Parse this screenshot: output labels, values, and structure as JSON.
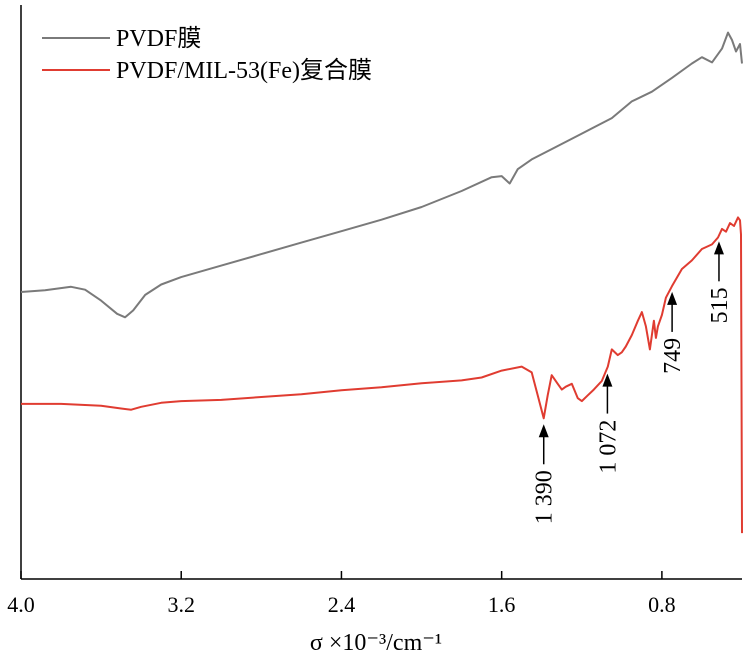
{
  "chart_data": {
    "type": "line",
    "xlabel": "σ ×10⁻³/cm⁻¹",
    "xlim": [
      4.0,
      0.4
    ],
    "x_reversed": true,
    "x_ticks": [
      4.0,
      3.2,
      2.4,
      1.6,
      0.8
    ],
    "x_tick_labels": [
      "4.0",
      "3.2",
      "2.4",
      "1.6",
      "0.8"
    ],
    "ylim": [
      0,
      100
    ],
    "y_ticks_shown": false,
    "legend_position": "top-left",
    "series": [
      {
        "name": "PVDF膜",
        "color": "#7a7a7a",
        "points": [
          [
            4.0,
            50.0
          ],
          [
            3.88,
            50.3
          ],
          [
            3.75,
            50.9
          ],
          [
            3.68,
            50.4
          ],
          [
            3.6,
            48.5
          ],
          [
            3.52,
            46.2
          ],
          [
            3.48,
            45.6
          ],
          [
            3.44,
            46.8
          ],
          [
            3.38,
            49.5
          ],
          [
            3.3,
            51.3
          ],
          [
            3.2,
            52.6
          ],
          [
            3.0,
            54.6
          ],
          [
            2.8,
            56.6
          ],
          [
            2.6,
            58.6
          ],
          [
            2.4,
            60.6
          ],
          [
            2.2,
            62.6
          ],
          [
            2.0,
            64.8
          ],
          [
            1.8,
            67.6
          ],
          [
            1.65,
            70.0
          ],
          [
            1.6,
            70.2
          ],
          [
            1.56,
            68.9
          ],
          [
            1.52,
            71.4
          ],
          [
            1.45,
            73.1
          ],
          [
            1.35,
            74.9
          ],
          [
            1.2,
            77.6
          ],
          [
            1.05,
            80.3
          ],
          [
            0.95,
            83.2
          ],
          [
            0.85,
            84.9
          ],
          [
            0.75,
            87.3
          ],
          [
            0.65,
            89.8
          ],
          [
            0.6,
            90.9
          ],
          [
            0.55,
            90.0
          ],
          [
            0.5,
            92.4
          ],
          [
            0.47,
            95.2
          ],
          [
            0.45,
            93.9
          ],
          [
            0.43,
            91.9
          ],
          [
            0.41,
            93.2
          ],
          [
            0.4,
            89.8
          ]
        ]
      },
      {
        "name": "PVDF/MIL-53(Fe)复合膜",
        "color": "#e03c31",
        "points": [
          [
            4.0,
            30.5
          ],
          [
            3.8,
            30.5
          ],
          [
            3.6,
            30.2
          ],
          [
            3.5,
            29.7
          ],
          [
            3.45,
            29.5
          ],
          [
            3.4,
            30.0
          ],
          [
            3.3,
            30.7
          ],
          [
            3.2,
            31.0
          ],
          [
            3.0,
            31.2
          ],
          [
            2.8,
            31.7
          ],
          [
            2.6,
            32.2
          ],
          [
            2.4,
            32.9
          ],
          [
            2.2,
            33.4
          ],
          [
            2.0,
            34.1
          ],
          [
            1.8,
            34.6
          ],
          [
            1.7,
            35.1
          ],
          [
            1.6,
            36.3
          ],
          [
            1.5,
            37.0
          ],
          [
            1.45,
            36.0
          ],
          [
            1.42,
            32.0
          ],
          [
            1.39,
            28.0
          ],
          [
            1.37,
            32.0
          ],
          [
            1.35,
            35.5
          ],
          [
            1.32,
            34.0
          ],
          [
            1.3,
            33.0
          ],
          [
            1.28,
            33.5
          ],
          [
            1.25,
            34.0
          ],
          [
            1.22,
            31.5
          ],
          [
            1.2,
            31.0
          ],
          [
            1.17,
            32.0
          ],
          [
            1.14,
            33.0
          ],
          [
            1.1,
            34.5
          ],
          [
            1.07,
            37.0
          ],
          [
            1.05,
            40.0
          ],
          [
            1.02,
            39.0
          ],
          [
            1.0,
            39.5
          ],
          [
            0.98,
            40.5
          ],
          [
            0.95,
            42.5
          ],
          [
            0.92,
            45.0
          ],
          [
            0.9,
            46.5
          ],
          [
            0.88,
            44.0
          ],
          [
            0.86,
            40.0
          ],
          [
            0.84,
            45.0
          ],
          [
            0.83,
            42.0
          ],
          [
            0.82,
            44.0
          ],
          [
            0.8,
            46.0
          ],
          [
            0.78,
            49.0
          ],
          [
            0.75,
            51.0
          ],
          [
            0.7,
            54.0
          ],
          [
            0.65,
            55.5
          ],
          [
            0.6,
            57.5
          ],
          [
            0.55,
            58.3
          ],
          [
            0.52,
            59.5
          ],
          [
            0.5,
            61.0
          ],
          [
            0.48,
            60.5
          ],
          [
            0.46,
            62.0
          ],
          [
            0.44,
            61.5
          ],
          [
            0.42,
            63.0
          ],
          [
            0.41,
            62.5
          ],
          [
            0.405,
            60.0
          ],
          [
            0.4,
            8.0
          ]
        ]
      }
    ],
    "annotations": [
      {
        "label": "1 390",
        "x": 1.39
      },
      {
        "label": "1 072",
        "x": 1.072
      },
      {
        "label": "749",
        "x": 0.749
      },
      {
        "label": "515",
        "x": 0.515
      }
    ]
  }
}
